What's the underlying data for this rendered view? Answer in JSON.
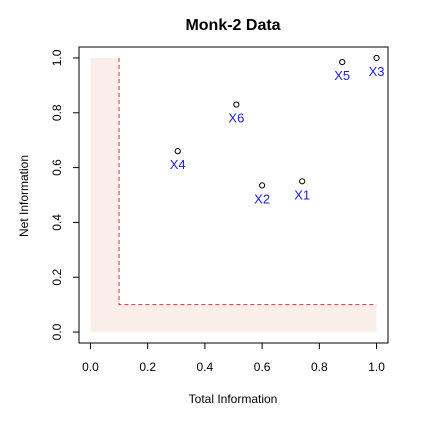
{
  "chart_data": {
    "type": "scatter",
    "title": "Monk-2 Data",
    "xlabel": "Total Information",
    "ylabel": "Net Information",
    "xlim": [
      -0.04,
      1.04
    ],
    "ylim": [
      -0.04,
      1.04
    ],
    "xticks": [
      "0.0",
      "0.2",
      "0.4",
      "0.6",
      "0.8",
      "1.0"
    ],
    "yticks": [
      "0.0",
      "0.2",
      "0.4",
      "0.6",
      "0.8",
      "1.0"
    ],
    "grid": false,
    "shaded_region": {
      "description": "L-shaped light region where total information < 0.1 or net information < 0.1",
      "threshold_x": 0.1,
      "threshold_y": 0.1,
      "color": "#faeeea"
    },
    "threshold_line": {
      "x": 0.1,
      "y": 0.1,
      "color": "#e03030",
      "style": "dashed"
    },
    "point_color": "#000000",
    "label_color": "#2020e0",
    "points": [
      {
        "label": "X1",
        "x": 0.74,
        "y": 0.55
      },
      {
        "label": "X2",
        "x": 0.6,
        "y": 0.535
      },
      {
        "label": "X3",
        "x": 1.0,
        "y": 1.0
      },
      {
        "label": "X4",
        "x": 0.305,
        "y": 0.66
      },
      {
        "label": "X5",
        "x": 0.88,
        "y": 0.985
      },
      {
        "label": "X6",
        "x": 0.51,
        "y": 0.83
      }
    ]
  }
}
